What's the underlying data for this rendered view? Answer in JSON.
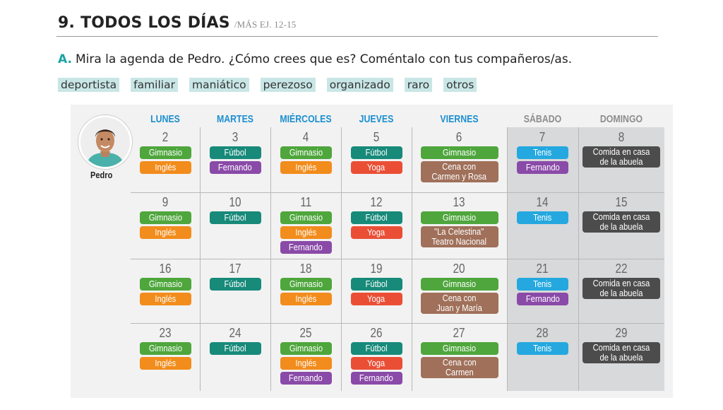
{
  "header": {
    "number": "9.",
    "title": "TODOS LOS DÍAS",
    "ref": "/MÁS EJ. 12-15"
  },
  "instruction": {
    "letter": "A.",
    "text": "Mira la agenda de Pedro. ¿Cómo crees que es? Coméntalo con tus compañeros/as."
  },
  "words": [
    "deportista",
    "familiar",
    "maniático",
    "perezoso",
    "organizado",
    "raro",
    "otros"
  ],
  "person": {
    "name": "Pedro"
  },
  "colors": {
    "gimnasio": "#4ea63c",
    "ingles": "#f28c1c",
    "futbol": "#178a7a",
    "yoga": "#ea4f36",
    "tenis": "#24a8df",
    "fernando": "#8a4aa8",
    "cena": "#a0705a",
    "abuela": "#4c4c4c"
  },
  "days": [
    "LUNES",
    "MARTES",
    "MIÉRCOLES",
    "JUEVES",
    "VIERNES",
    "SÁBADO",
    "DOMINGO"
  ],
  "weeks": [
    [
      {
        "n": "2",
        "events": [
          {
            "label": "Gimnasio",
            "type": "gimnasio"
          },
          {
            "label": "Inglés",
            "type": "ingles"
          }
        ]
      },
      {
        "n": "3",
        "events": [
          {
            "label": "Fútbol",
            "type": "futbol"
          },
          {
            "label": "Fernando",
            "type": "fernando"
          }
        ]
      },
      {
        "n": "4",
        "events": [
          {
            "label": "Gimnasio",
            "type": "gimnasio"
          },
          {
            "label": "Inglés",
            "type": "ingles"
          }
        ]
      },
      {
        "n": "5",
        "events": [
          {
            "label": "Fútbol",
            "type": "futbol"
          },
          {
            "label": "Yoga",
            "type": "yoga"
          }
        ]
      },
      {
        "n": "6",
        "events": [
          {
            "label": "Gimnasio",
            "type": "gimnasio"
          },
          {
            "label": "Cena con\nCarmen y Rosa",
            "type": "cena"
          }
        ]
      },
      {
        "n": "7",
        "events": [
          {
            "label": "Tenis",
            "type": "tenis"
          },
          {
            "label": "Fernando",
            "type": "fernando"
          }
        ]
      },
      {
        "n": "8",
        "events": [
          {
            "label": "Comida en casa\nde la abuela",
            "type": "abuela"
          }
        ]
      }
    ],
    [
      {
        "n": "9",
        "events": [
          {
            "label": "Gimnasio",
            "type": "gimnasio"
          },
          {
            "label": "Inglés",
            "type": "ingles"
          }
        ]
      },
      {
        "n": "10",
        "events": [
          {
            "label": "Fútbol",
            "type": "futbol"
          }
        ]
      },
      {
        "n": "11",
        "events": [
          {
            "label": "Gimnasio",
            "type": "gimnasio"
          },
          {
            "label": "Inglés",
            "type": "ingles"
          },
          {
            "label": "Fernando",
            "type": "fernando"
          }
        ]
      },
      {
        "n": "12",
        "events": [
          {
            "label": "Fútbol",
            "type": "futbol"
          },
          {
            "label": "Yoga",
            "type": "yoga"
          }
        ]
      },
      {
        "n": "13",
        "events": [
          {
            "label": "Gimnasio",
            "type": "gimnasio"
          },
          {
            "label": "\"La Celestina\"\nTeatro Nacional",
            "type": "cena"
          }
        ]
      },
      {
        "n": "14",
        "events": [
          {
            "label": "Tenis",
            "type": "tenis"
          }
        ]
      },
      {
        "n": "15",
        "events": [
          {
            "label": "Comida en casa\nde la abuela",
            "type": "abuela"
          }
        ]
      }
    ],
    [
      {
        "n": "16",
        "events": [
          {
            "label": "Gimnasio",
            "type": "gimnasio"
          },
          {
            "label": "Inglés",
            "type": "ingles"
          }
        ]
      },
      {
        "n": "17",
        "events": [
          {
            "label": "Fútbol",
            "type": "futbol"
          }
        ]
      },
      {
        "n": "18",
        "events": [
          {
            "label": "Gimnasio",
            "type": "gimnasio"
          },
          {
            "label": "Inglés",
            "type": "ingles"
          }
        ]
      },
      {
        "n": "19",
        "events": [
          {
            "label": "Fútbol",
            "type": "futbol"
          },
          {
            "label": "Yoga",
            "type": "yoga"
          }
        ]
      },
      {
        "n": "20",
        "events": [
          {
            "label": "Gimnasio",
            "type": "gimnasio"
          },
          {
            "label": "Cena con\nJuan y María",
            "type": "cena"
          }
        ]
      },
      {
        "n": "21",
        "events": [
          {
            "label": "Tenis",
            "type": "tenis"
          },
          {
            "label": "Fernando",
            "type": "fernando"
          }
        ]
      },
      {
        "n": "22",
        "events": [
          {
            "label": "Comida en casa\nde la abuela",
            "type": "abuela"
          }
        ]
      }
    ],
    [
      {
        "n": "23",
        "events": [
          {
            "label": "Gimnasio",
            "type": "gimnasio"
          },
          {
            "label": "Inglés",
            "type": "ingles"
          }
        ]
      },
      {
        "n": "24",
        "events": [
          {
            "label": "Fútbol",
            "type": "futbol"
          }
        ]
      },
      {
        "n": "25",
        "events": [
          {
            "label": "Gimnasio",
            "type": "gimnasio"
          },
          {
            "label": "Inglés",
            "type": "ingles"
          },
          {
            "label": "Fernando",
            "type": "fernando"
          }
        ]
      },
      {
        "n": "26",
        "events": [
          {
            "label": "Fútbol",
            "type": "futbol"
          },
          {
            "label": "Yoga",
            "type": "yoga"
          },
          {
            "label": "Fernando",
            "type": "fernando"
          }
        ]
      },
      {
        "n": "27",
        "events": [
          {
            "label": "Gimnasio",
            "type": "gimnasio"
          },
          {
            "label": "Cena con\nCarmen",
            "type": "cena"
          }
        ]
      },
      {
        "n": "28",
        "events": [
          {
            "label": "Tenis",
            "type": "tenis"
          }
        ]
      },
      {
        "n": "29",
        "events": [
          {
            "label": "Comida en casa\nde la abuela",
            "type": "abuela"
          }
        ]
      }
    ]
  ]
}
